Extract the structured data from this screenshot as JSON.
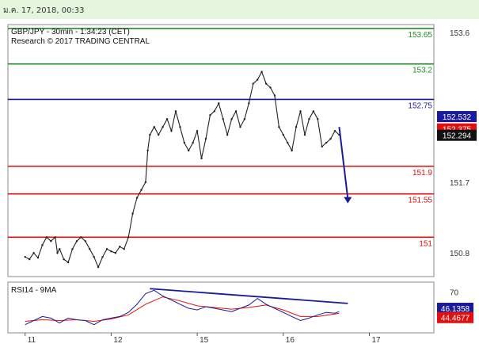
{
  "header": {
    "timestamp": "ม.ค. 17, 2018, 00:33"
  },
  "chart_data": {
    "type": "candlestick",
    "title": "GBP/JPY - 30min - 1:34:23 (CET)",
    "subtitle": "Research © 2017 TRADING CENTRAL",
    "ylim": [
      150.5,
      153.7
    ],
    "y_ticks": [
      "153.6",
      "151.7",
      "150.8"
    ],
    "y_tick_values": [
      153.6,
      151.7,
      150.8
    ],
    "x_ticks": [
      "11",
      "12",
      "15",
      "16",
      "17"
    ],
    "x_tick_positions": [
      0,
      40,
      80,
      120,
      160
    ],
    "xlim": [
      -8,
      190
    ],
    "levels": [
      {
        "value": 153.65,
        "label": "153.65",
        "color": "#1f8f1f"
      },
      {
        "value": 153.2,
        "label": "153.2",
        "color": "#1f8f1f"
      },
      {
        "value": 152.75,
        "label": "152.75",
        "color": "#1a1a9a"
      },
      {
        "value": 151.9,
        "label": "151.9",
        "color": "#e01010"
      },
      {
        "value": 151.55,
        "label": "151.55",
        "color": "#e01010"
      },
      {
        "value": 151.0,
        "label": "151",
        "color": "#e01010"
      }
    ],
    "price_tags": [
      {
        "value": 152.532,
        "label": "152.532",
        "color": "#1a1a9a"
      },
      {
        "value": 152.375,
        "label": "152.375",
        "color": "#e01010"
      },
      {
        "value": 152.294,
        "label": "152.294",
        "color": "#111111"
      }
    ],
    "price_series": [
      [
        0,
        150.75
      ],
      [
        2,
        150.72
      ],
      [
        4,
        150.8
      ],
      [
        6,
        150.74
      ],
      [
        8,
        150.9
      ],
      [
        10,
        151.0
      ],
      [
        12,
        150.95
      ],
      [
        14,
        151.0
      ],
      [
        15,
        150.8
      ],
      [
        16,
        150.85
      ],
      [
        18,
        150.72
      ],
      [
        20,
        150.68
      ],
      [
        22,
        150.85
      ],
      [
        24,
        150.95
      ],
      [
        26,
        151.0
      ],
      [
        28,
        150.95
      ],
      [
        30,
        150.85
      ],
      [
        32,
        150.75
      ],
      [
        34,
        150.62
      ],
      [
        36,
        150.75
      ],
      [
        38,
        150.85
      ],
      [
        40,
        150.82
      ],
      [
        42,
        150.8
      ],
      [
        44,
        150.88
      ],
      [
        46,
        150.85
      ],
      [
        48,
        151.0
      ],
      [
        50,
        151.3
      ],
      [
        52,
        151.5
      ],
      [
        54,
        151.6
      ],
      [
        56,
        151.7
      ],
      [
        57,
        152.1
      ],
      [
        58,
        152.3
      ],
      [
        60,
        152.4
      ],
      [
        62,
        152.3
      ],
      [
        64,
        152.4
      ],
      [
        66,
        152.5
      ],
      [
        68,
        152.35
      ],
      [
        70,
        152.6
      ],
      [
        72,
        152.4
      ],
      [
        74,
        152.2
      ],
      [
        76,
        152.1
      ],
      [
        78,
        152.2
      ],
      [
        80,
        152.35
      ],
      [
        82,
        152.0
      ],
      [
        84,
        152.25
      ],
      [
        86,
        152.55
      ],
      [
        88,
        152.6
      ],
      [
        90,
        152.7
      ],
      [
        92,
        152.5
      ],
      [
        94,
        152.3
      ],
      [
        96,
        152.5
      ],
      [
        98,
        152.6
      ],
      [
        100,
        152.4
      ],
      [
        102,
        152.5
      ],
      [
        104,
        152.7
      ],
      [
        106,
        152.95
      ],
      [
        108,
        153.0
      ],
      [
        110,
        153.1
      ],
      [
        112,
        152.95
      ],
      [
        114,
        152.9
      ],
      [
        116,
        152.8
      ],
      [
        118,
        152.4
      ],
      [
        120,
        152.3
      ],
      [
        122,
        152.2
      ],
      [
        124,
        152.1
      ],
      [
        126,
        152.4
      ],
      [
        128,
        152.6
      ],
      [
        130,
        152.3
      ],
      [
        132,
        152.5
      ],
      [
        134,
        152.6
      ],
      [
        136,
        152.5
      ],
      [
        138,
        152.15
      ],
      [
        140,
        152.2
      ],
      [
        142,
        152.25
      ],
      [
        144,
        152.35
      ],
      [
        146,
        152.3
      ]
    ],
    "projection": [
      [
        146,
        152.4
      ],
      [
        150,
        151.55
      ]
    ],
    "rsi": {
      "label": "RSI14 - 9MA",
      "ylim": [
        20,
        82
      ],
      "y_ticks": [
        "70"
      ],
      "y_tick_values": [
        70
      ],
      "values": [
        [
          0,
          30
        ],
        [
          4,
          35
        ],
        [
          8,
          40
        ],
        [
          12,
          38
        ],
        [
          16,
          32
        ],
        [
          20,
          38
        ],
        [
          24,
          36
        ],
        [
          28,
          35
        ],
        [
          32,
          30
        ],
        [
          36,
          36
        ],
        [
          40,
          38
        ],
        [
          44,
          40
        ],
        [
          48,
          45
        ],
        [
          52,
          55
        ],
        [
          56,
          68
        ],
        [
          60,
          72
        ],
        [
          64,
          65
        ],
        [
          68,
          60
        ],
        [
          72,
          55
        ],
        [
          76,
          50
        ],
        [
          80,
          48
        ],
        [
          84,
          52
        ],
        [
          88,
          50
        ],
        [
          92,
          48
        ],
        [
          96,
          46
        ],
        [
          100,
          50
        ],
        [
          104,
          54
        ],
        [
          108,
          62
        ],
        [
          112,
          55
        ],
        [
          116,
          50
        ],
        [
          120,
          45
        ],
        [
          124,
          40
        ],
        [
          128,
          35
        ],
        [
          132,
          38
        ],
        [
          136,
          42
        ],
        [
          140,
          45
        ],
        [
          144,
          44
        ],
        [
          146,
          46
        ]
      ],
      "ma": [
        [
          0,
          34
        ],
        [
          8,
          36
        ],
        [
          16,
          35
        ],
        [
          24,
          36
        ],
        [
          32,
          34
        ],
        [
          40,
          37
        ],
        [
          48,
          42
        ],
        [
          56,
          55
        ],
        [
          64,
          64
        ],
        [
          72,
          59
        ],
        [
          80,
          53
        ],
        [
          88,
          51
        ],
        [
          96,
          49
        ],
        [
          104,
          51
        ],
        [
          112,
          54
        ],
        [
          120,
          48
        ],
        [
          128,
          40
        ],
        [
          136,
          40
        ],
        [
          144,
          43
        ],
        [
          146,
          44
        ]
      ],
      "trendline": [
        [
          58,
          74
        ],
        [
          150,
          56
        ]
      ],
      "tags": [
        {
          "value": 46.1358,
          "label": "46.1358",
          "color": "#1a1a9a"
        },
        {
          "value": 44.4677,
          "label": "44.4677",
          "color": "#e01010"
        }
      ]
    }
  }
}
